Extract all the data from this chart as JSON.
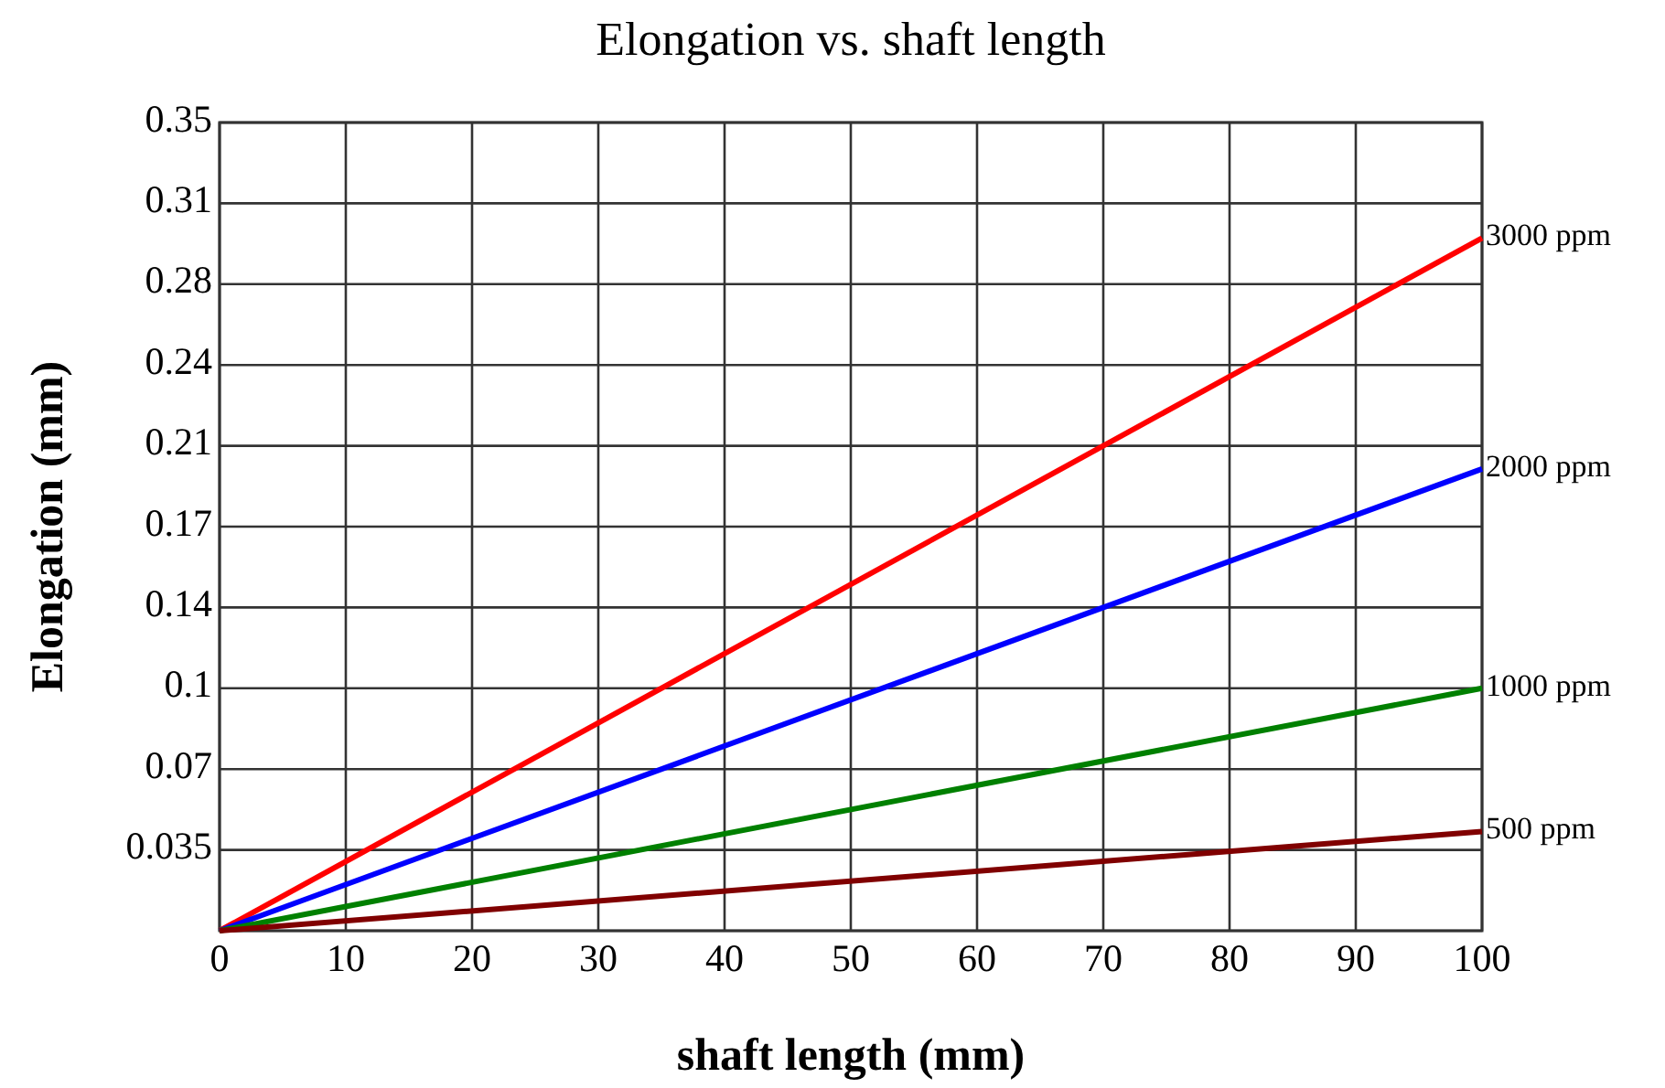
{
  "chart_data": {
    "type": "line",
    "title": "Elongation vs. shaft length",
    "xlabel": "shaft length (mm)",
    "ylabel": "Elongation (mm)",
    "x": [
      0,
      100
    ],
    "xlim": [
      0,
      100
    ],
    "xticks": [
      0,
      10,
      20,
      30,
      40,
      50,
      60,
      70,
      80,
      90,
      100
    ],
    "ylim": [
      0,
      0.35
    ],
    "yticks": [
      {
        "value": 0,
        "label": null
      },
      0.035,
      0.07,
      {
        "value": 0.105,
        "label": "0.1"
      },
      0.14,
      {
        "value": 0.175,
        "label": "0.17"
      },
      0.21,
      {
        "value": 0.245,
        "label": "0.24"
      },
      0.28,
      {
        "value": 0.315,
        "label": "0.31"
      },
      0.35
    ],
    "grid": true,
    "marker": "none",
    "line_style": "solid",
    "series": [
      {
        "name": "3000 ppm",
        "color": "#ff0000",
        "values": [
          0,
          0.3
        ]
      },
      {
        "name": "2000 ppm",
        "color": "#0000ff",
        "values": [
          0,
          0.2
        ]
      },
      {
        "name": "1000 ppm",
        "color": "#008000",
        "values": [
          0,
          0.105
        ]
      },
      {
        "name": "500 ppm",
        "color": "#800000",
        "values": [
          0,
          0.043
        ]
      }
    ]
  }
}
